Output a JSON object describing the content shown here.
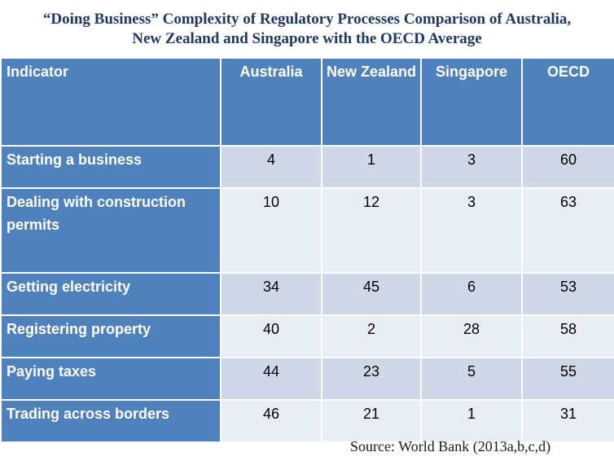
{
  "title": {
    "line1": "“Doing Business” Complexity of Regulatory Processes Comparison of Australia,",
    "line2": "New Zealand and Singapore with the OECD Average"
  },
  "table": {
    "headers": [
      "Indicator",
      "Australia",
      "New Zealand",
      "Singapore",
      "OECD"
    ],
    "rows": [
      {
        "indicator": "Starting a business",
        "australia": "4",
        "new_zealand": "1",
        "singapore": "3",
        "oecd": "60"
      },
      {
        "indicator": "Dealing with construction permits",
        "australia": "10",
        "new_zealand": "12",
        "singapore": "3",
        "oecd": "63"
      },
      {
        "indicator": "Getting electricity",
        "australia": "34",
        "new_zealand": "45",
        "singapore": "6",
        "oecd": "53"
      },
      {
        "indicator": "Registering property",
        "australia": "40",
        "new_zealand": "2",
        "singapore": "28",
        "oecd": "58"
      },
      {
        "indicator": "Paying taxes",
        "australia": "44",
        "new_zealand": "23",
        "singapore": "5",
        "oecd": "55"
      },
      {
        "indicator": "Trading across borders",
        "australia": "46",
        "new_zealand": "21",
        "singapore": "1",
        "oecd": "31"
      }
    ]
  },
  "source": "Source: World Bank (2013a,b,c,d)",
  "colors": {
    "header_fill": "#4f81bd",
    "row_odd_fill": "#d0d8e8",
    "row_even_fill": "#e9edf4",
    "title_color": "#1f3864"
  }
}
